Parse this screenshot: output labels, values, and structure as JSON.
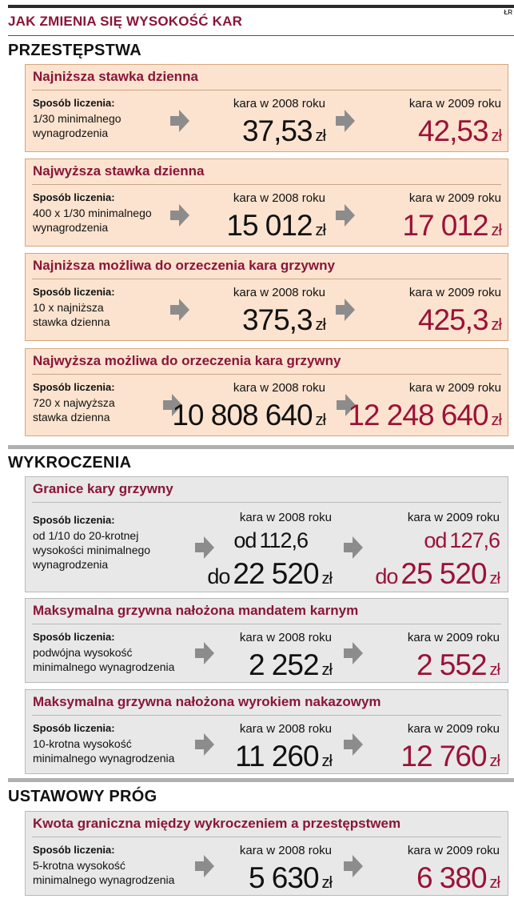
{
  "header": {
    "title": "JAK ZMIENIA SIĘ WYSOKOŚĆ KAR",
    "credit": "ŁR"
  },
  "labels": {
    "method": "Sposób liczenia:",
    "year2008": "kara w 2008 roku",
    "year2009": "kara w 2009 roku",
    "currency": "zł",
    "from": "od",
    "to": "do"
  },
  "colors": {
    "accent": "#8a1538",
    "red_value": "#9b1237",
    "orange_box": "#fbe3cf",
    "gray_box": "#e8e8e8",
    "arrow": "#8c8c8c"
  },
  "sections": [
    {
      "title": "PRZESTĘPSTWA"
    },
    {
      "title": "WYKROCZENIA"
    },
    {
      "title": "USTAWOWY PRÓG"
    }
  ],
  "boxes": [
    {
      "title": "Najniższa stawka dzienna",
      "method": "1/30 minimalnego\nwynagrodzenia",
      "v2008": "37,53",
      "v2009": "42,53"
    },
    {
      "title": "Najwyższa stawka dzienna",
      "method": "400 x 1/30 minimalnego\nwynagrodzenia",
      "v2008": "15 012",
      "v2009": "17 012"
    },
    {
      "title": "Najniższa możliwa do orzeczenia kara grzywny",
      "method": "10 x najniższa\nstawka dzienna",
      "v2008": "375,3",
      "v2009": "425,3"
    },
    {
      "title": "Najwyższa możliwa do orzeczenia kara grzywny",
      "method": "720 x najwyższa\nstawka dzienna",
      "v2008": "10 808 640",
      "v2009": "12 248 640"
    },
    {
      "title": "Granice kary grzywny",
      "method": "od 1/10 do 20-krotnej\nwysokości minimalnego\nwynagrodzenia",
      "v2008_from": "112,6",
      "v2008": "22 520",
      "v2009_from": "127,6",
      "v2009": "25 520"
    },
    {
      "title": "Maksymalna grzywna nałożona mandatem karnym",
      "method": "podwójna wysokość\nminimalnego wynagrodzenia",
      "v2008": "2 252",
      "v2009": "2 552"
    },
    {
      "title": "Maksymalna grzywna nałożona wyrokiem nakazowym",
      "method": "10-krotna wysokość\nminimalnego wynagrodzenia",
      "v2008": "11 260",
      "v2009": "12 760"
    },
    {
      "title": "Kwota graniczna między wykroczeniem a przestępstwem",
      "method": "5-krotna wysokość\nminimalnego wynagrodzenia",
      "v2008": "5 630",
      "v2009": "6 380"
    }
  ]
}
